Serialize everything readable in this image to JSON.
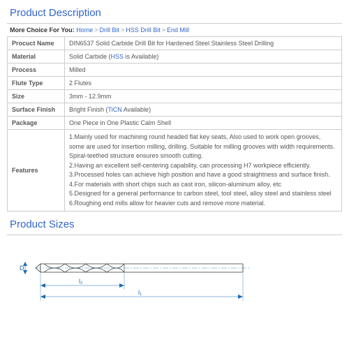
{
  "sections": {
    "desc_title": "Product Description",
    "sizes_title": "Product Sizes"
  },
  "breadcrumb": {
    "label": "More Choice For You:",
    "items": [
      "Home",
      "Drill Bit",
      "HSS Drill Bit",
      "End Mill"
    ]
  },
  "table": {
    "product_name": {
      "label": "Procuct Name",
      "value": "DIN6537 Solid Carbide Drill Bit for Hardened Steel Stainless Steel Drilling"
    },
    "material": {
      "label": "Material",
      "value_prefix": "Solid Carbide    (",
      "value_link": "HSS",
      "value_suffix": " is Available)"
    },
    "process": {
      "label": "Process",
      "value": "Milled"
    },
    "flute_type": {
      "label": "Flute Type",
      "value": "2 Flutes"
    },
    "size": {
      "label": "Size",
      "value": "3mm - 12.9mm"
    },
    "surface_finish": {
      "label": "Surface Finish",
      "value_prefix": "Bright Finish   (",
      "value_link": "TiCN",
      "value_suffix": " Available)"
    },
    "package": {
      "label": "Package",
      "value": "One Piece in One Plastic Calm Shell"
    },
    "features": {
      "label": "Features",
      "lines": [
        "1.Mainly used for machining round headed flat key seats, Also used to work open grooves, some are used for insertion milling, drilling. Suitable for milling grooves with width requirements. Spiral-teethed structure ensures smooth cutting.",
        "2.Having an excellent self-centering capability, can processing H7 workpiece efficiently.",
        "3.Processed holes can achieve high position and have a good straightness and surface finish.",
        "4.For materials with short chips such as cast iron, silicon-aluminum alloy, etc",
        "5.Designed for a general performance to carbon steel, tool steel, alloy steel and stainless steel",
        "6.Roughing end mills allow for heavier cuts and remove more material."
      ]
    }
  },
  "diagram": {
    "labels": {
      "D": "D",
      "l1": "l₁",
      "l2": "l₂"
    },
    "colors": {
      "stroke": "#333333",
      "dim": "#1a6bb3",
      "fill": "#f5f5f5"
    }
  }
}
